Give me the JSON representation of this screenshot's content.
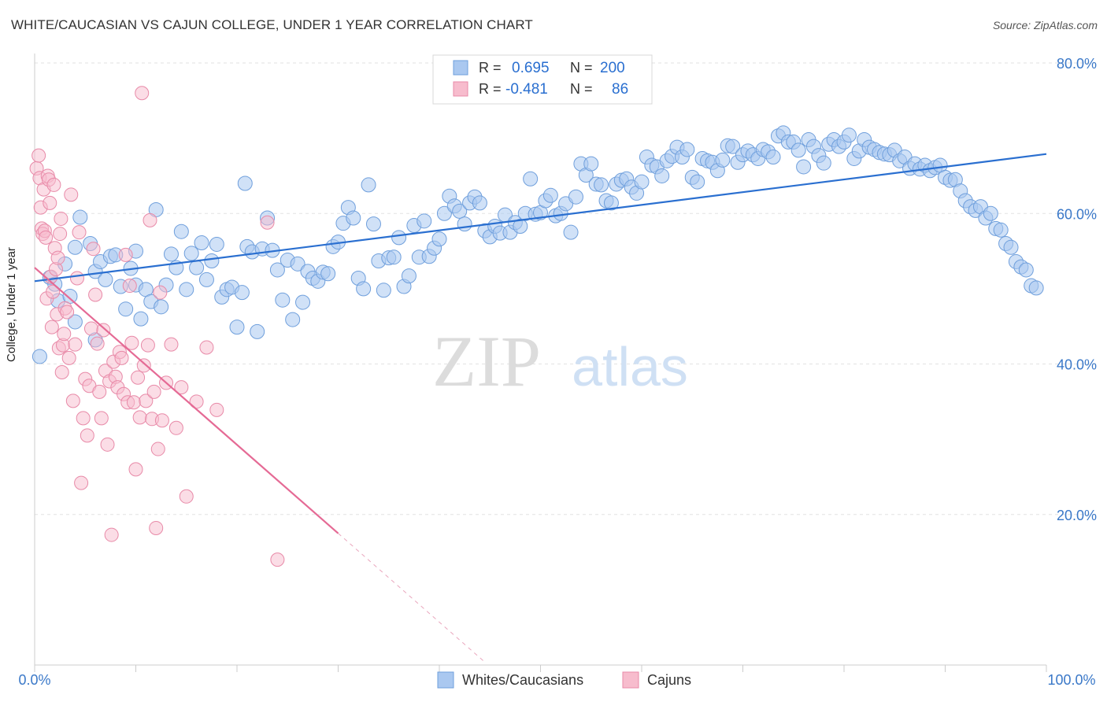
{
  "title": "WHITE/CAUCASIAN VS CAJUN COLLEGE, UNDER 1 YEAR CORRELATION CHART",
  "source": "Source: ZipAtlas.com",
  "watermark": {
    "zip": "ZIP",
    "atlas": "atlas"
  },
  "legend": {
    "rows": [
      {
        "r_label": "R =",
        "r_value": "0.695",
        "n_label": "N =",
        "n_value": "200",
        "color": "#aac8f0"
      },
      {
        "r_label": "R =",
        "r_value": "-0.481",
        "n_label": "N =",
        "n_value": "86",
        "color": "#f7bccd"
      }
    ]
  },
  "bottom_legend": [
    {
      "label": "Whites/Caucasians",
      "color": "#aac8f0"
    },
    {
      "label": "Cajuns",
      "color": "#f7bccd"
    }
  ],
  "chart_data": {
    "type": "scatter",
    "title": "WHITE/CAUCASIAN VS CAJUN COLLEGE, UNDER 1 YEAR CORRELATION CHART",
    "xlabel": "",
    "ylabel": "College, Under 1 year",
    "xlim": [
      0,
      100
    ],
    "ylim": [
      0,
      82
    ],
    "x_ticks": [
      "0.0%",
      "100.0%"
    ],
    "y_ticks": [
      "20.0%",
      "40.0%",
      "60.0%",
      "80.0%"
    ],
    "grid": true,
    "colors": {
      "blue": "#2a6fd0",
      "blue_fill": "#aac8f0",
      "pink": "#e56a95",
      "pink_fill": "#f7bccd",
      "tick_label": "#3a78c8"
    },
    "series": [
      {
        "name": "Whites/Caucasians",
        "color": "#2a6fd0",
        "trend": {
          "x": [
            0,
            100
          ],
          "y": [
            51.0,
            67.9
          ]
        },
        "points": [
          [
            0.5,
            41
          ],
          [
            1.5,
            51.5
          ],
          [
            2,
            50.6
          ],
          [
            2.3,
            48.4
          ],
          [
            3,
            53.3
          ],
          [
            3.5,
            49
          ],
          [
            4,
            55.5
          ],
          [
            4.5,
            59.5
          ],
          [
            5.5,
            56
          ],
          [
            6,
            52.3
          ],
          [
            6.5,
            53.6
          ],
          [
            7,
            51.2
          ],
          [
            7.5,
            54.3
          ],
          [
            8,
            54.5
          ],
          [
            8.5,
            50.3
          ],
          [
            9,
            47.3
          ],
          [
            9.5,
            52.7
          ],
          [
            10,
            50.5
          ],
          [
            10.5,
            46
          ],
          [
            11,
            49.9
          ],
          [
            11.5,
            48.3
          ],
          [
            12,
            60.5
          ],
          [
            12.5,
            47.6
          ],
          [
            13,
            50.5
          ],
          [
            13.5,
            54.6
          ],
          [
            14,
            52.8
          ],
          [
            14.5,
            57.6
          ],
          [
            15,
            49.9
          ],
          [
            15.5,
            54.7
          ],
          [
            16,
            52.8
          ],
          [
            16.5,
            56.1
          ],
          [
            17,
            51.2
          ],
          [
            17.5,
            53.7
          ],
          [
            18,
            55.9
          ],
          [
            18.5,
            48.9
          ],
          [
            19,
            49.9
          ],
          [
            19.5,
            50.2
          ],
          [
            20,
            44.9
          ],
          [
            20.5,
            49.5
          ],
          [
            21,
            55.6
          ],
          [
            21.5,
            54.9
          ],
          [
            22,
            44.3
          ],
          [
            22.5,
            55.3
          ],
          [
            23,
            59.4
          ],
          [
            23.5,
            55.1
          ],
          [
            24,
            52.5
          ],
          [
            24.5,
            48.5
          ],
          [
            25,
            53.8
          ],
          [
            25.5,
            45.9
          ],
          [
            26,
            53.3
          ],
          [
            26.5,
            48.2
          ],
          [
            27,
            52.3
          ],
          [
            27.5,
            51.4
          ],
          [
            28,
            51
          ],
          [
            28.5,
            52.2
          ],
          [
            29,
            52
          ],
          [
            29.5,
            55.6
          ],
          [
            30,
            56.2
          ],
          [
            30.5,
            58.7
          ],
          [
            31,
            60.8
          ],
          [
            31.5,
            59.4
          ],
          [
            32,
            51.4
          ],
          [
            32.5,
            50
          ],
          [
            33,
            63.8
          ],
          [
            33.5,
            58.6
          ],
          [
            34,
            53.7
          ],
          [
            34.5,
            49.8
          ],
          [
            35,
            54.1
          ],
          [
            35.5,
            54.2
          ],
          [
            36,
            56.8
          ],
          [
            36.5,
            50.3
          ],
          [
            37,
            51.7
          ],
          [
            37.5,
            58.4
          ],
          [
            38,
            54.2
          ],
          [
            38.5,
            59
          ],
          [
            39,
            54.3
          ],
          [
            39.5,
            55.4
          ],
          [
            40,
            56.6
          ],
          [
            40.5,
            60
          ],
          [
            41,
            62.3
          ],
          [
            41.5,
            61
          ],
          [
            42,
            60.3
          ],
          [
            42.5,
            58.6
          ],
          [
            43,
            61.4
          ],
          [
            43.5,
            62.2
          ],
          [
            44,
            61.4
          ],
          [
            44.5,
            57.7
          ],
          [
            45,
            56.9
          ],
          [
            45.5,
            58.3
          ],
          [
            46,
            57.4
          ],
          [
            46.5,
            59.8
          ],
          [
            47,
            57.5
          ],
          [
            47.5,
            58.8
          ],
          [
            48,
            58.3
          ],
          [
            48.5,
            60
          ],
          [
            49,
            64.6
          ],
          [
            49.5,
            59.9
          ],
          [
            50,
            60.1
          ],
          [
            50.5,
            61.7
          ],
          [
            51,
            62.4
          ],
          [
            51.5,
            59.7
          ],
          [
            52,
            60
          ],
          [
            52.5,
            61.3
          ],
          [
            53,
            57.5
          ],
          [
            53.5,
            62.2
          ],
          [
            54,
            66.6
          ],
          [
            54.5,
            65.1
          ],
          [
            55,
            66.6
          ],
          [
            55.5,
            63.9
          ],
          [
            56,
            63.8
          ],
          [
            56.5,
            61.7
          ],
          [
            57,
            61.4
          ],
          [
            57.5,
            63.9
          ],
          [
            58,
            64.4
          ],
          [
            58.5,
            64.6
          ],
          [
            59,
            63.5
          ],
          [
            59.5,
            62.7
          ],
          [
            60,
            64.2
          ],
          [
            60.5,
            67.5
          ],
          [
            61,
            66.4
          ],
          [
            61.5,
            66.2
          ],
          [
            62,
            65
          ],
          [
            62.5,
            67
          ],
          [
            63,
            67.6
          ],
          [
            63.5,
            68.8
          ],
          [
            64,
            67.5
          ],
          [
            64.5,
            68.5
          ],
          [
            65,
            64.8
          ],
          [
            65.5,
            64.2
          ],
          [
            66,
            67.3
          ],
          [
            66.5,
            67
          ],
          [
            67,
            66.8
          ],
          [
            67.5,
            65.7
          ],
          [
            68,
            67.1
          ],
          [
            68.5,
            69
          ],
          [
            69,
            68.9
          ],
          [
            69.5,
            66.8
          ],
          [
            70,
            67.8
          ],
          [
            70.5,
            68.3
          ],
          [
            71,
            67.8
          ],
          [
            71.5,
            67.3
          ],
          [
            72,
            68.5
          ],
          [
            72.5,
            68.2
          ],
          [
            73,
            67.5
          ],
          [
            73.5,
            70.3
          ],
          [
            74,
            70.7
          ],
          [
            74.5,
            69.5
          ],
          [
            75,
            69.5
          ],
          [
            75.5,
            68.4
          ],
          [
            76,
            66.2
          ],
          [
            76.5,
            69.8
          ],
          [
            77,
            68.9
          ],
          [
            77.5,
            67.7
          ],
          [
            78,
            66.7
          ],
          [
            78.5,
            69.2
          ],
          [
            79,
            69.8
          ],
          [
            79.5,
            68.9
          ],
          [
            80,
            69.5
          ],
          [
            80.5,
            70.4
          ],
          [
            81,
            67.3
          ],
          [
            81.5,
            68.3
          ],
          [
            82,
            69.8
          ],
          [
            82.5,
            68.8
          ],
          [
            83,
            68.5
          ],
          [
            83.5,
            68.1
          ],
          [
            84,
            67.9
          ],
          [
            84.5,
            67.8
          ],
          [
            85,
            68.4
          ],
          [
            85.5,
            67
          ],
          [
            86,
            67.5
          ],
          [
            86.5,
            66
          ],
          [
            87,
            66.6
          ],
          [
            87.5,
            65.9
          ],
          [
            88,
            66.4
          ],
          [
            88.5,
            65.7
          ],
          [
            89,
            66.1
          ],
          [
            89.5,
            66.4
          ],
          [
            90,
            64.8
          ],
          [
            90.5,
            64.4
          ],
          [
            91,
            64.5
          ],
          [
            91.5,
            63
          ],
          [
            92,
            61.7
          ],
          [
            92.5,
            60.9
          ],
          [
            93,
            60.4
          ],
          [
            93.5,
            60.9
          ],
          [
            94,
            59.4
          ],
          [
            94.5,
            60
          ],
          [
            95,
            58
          ],
          [
            95.5,
            57.8
          ],
          [
            96,
            56
          ],
          [
            96.5,
            55.5
          ],
          [
            97,
            53.6
          ],
          [
            97.5,
            52.9
          ],
          [
            98,
            52.5
          ],
          [
            98.5,
            50.4
          ],
          [
            99,
            50.1
          ],
          [
            4,
            45.6
          ],
          [
            6,
            43.2
          ],
          [
            10,
            55
          ],
          [
            20.8,
            64
          ]
        ]
      },
      {
        "name": "Cajuns",
        "color": "#e56a95",
        "trend": {
          "x": [
            0,
            30
          ],
          "y": [
            52.8,
            17.5
          ]
        },
        "trend_ext": {
          "x": [
            30,
            44.4
          ],
          "y": [
            17.5,
            0.5
          ]
        },
        "points": [
          [
            0.2,
            66
          ],
          [
            0.4,
            67.7
          ],
          [
            0.5,
            64.7
          ],
          [
            0.6,
            60.8
          ],
          [
            0.7,
            58
          ],
          [
            0.8,
            57.3
          ],
          [
            0.9,
            63.2
          ],
          [
            1,
            57.7
          ],
          [
            1.1,
            56.8
          ],
          [
            1.2,
            48.7
          ],
          [
            1.3,
            65
          ],
          [
            1.4,
            64.5
          ],
          [
            1.5,
            61.4
          ],
          [
            1.6,
            51.6
          ],
          [
            1.7,
            44.9
          ],
          [
            1.8,
            49.6
          ],
          [
            1.9,
            63.8
          ],
          [
            2,
            55.4
          ],
          [
            2.1,
            52.6
          ],
          [
            2.2,
            46.6
          ],
          [
            2.3,
            54.1
          ],
          [
            2.4,
            42.1
          ],
          [
            2.5,
            57.3
          ],
          [
            2.6,
            59.3
          ],
          [
            2.7,
            38.9
          ],
          [
            2.8,
            42.5
          ],
          [
            2.9,
            44
          ],
          [
            3,
            47.4
          ],
          [
            3.2,
            46.9
          ],
          [
            3.4,
            40.8
          ],
          [
            3.6,
            62.5
          ],
          [
            3.8,
            35.1
          ],
          [
            4,
            42.6
          ],
          [
            4.2,
            51.4
          ],
          [
            4.4,
            57.5
          ],
          [
            4.6,
            24.2
          ],
          [
            4.8,
            32.8
          ],
          [
            5,
            38
          ],
          [
            5.2,
            30.5
          ],
          [
            5.4,
            37.1
          ],
          [
            5.6,
            44.7
          ],
          [
            5.8,
            55.3
          ],
          [
            6,
            49.2
          ],
          [
            6.2,
            42.7
          ],
          [
            6.4,
            36.3
          ],
          [
            6.6,
            32.8
          ],
          [
            6.8,
            44.5
          ],
          [
            7,
            39.1
          ],
          [
            7.2,
            29.3
          ],
          [
            7.4,
            37.7
          ],
          [
            7.6,
            17.3
          ],
          [
            7.8,
            40.3
          ],
          [
            8,
            38.3
          ],
          [
            8.2,
            36.9
          ],
          [
            8.4,
            41.6
          ],
          [
            8.6,
            40.8
          ],
          [
            8.8,
            36
          ],
          [
            9,
            54.5
          ],
          [
            9.2,
            34.9
          ],
          [
            9.4,
            50.4
          ],
          [
            9.6,
            42.8
          ],
          [
            9.8,
            34.9
          ],
          [
            10,
            26
          ],
          [
            10.2,
            38.2
          ],
          [
            10.4,
            32.9
          ],
          [
            10.6,
            76
          ],
          [
            10.8,
            39.8
          ],
          [
            11,
            35.1
          ],
          [
            11.2,
            42.5
          ],
          [
            11.4,
            59.1
          ],
          [
            11.6,
            32.7
          ],
          [
            11.8,
            36.3
          ],
          [
            12,
            18.2
          ],
          [
            12.2,
            28.7
          ],
          [
            12.4,
            49.5
          ],
          [
            12.6,
            32.5
          ],
          [
            13,
            37.5
          ],
          [
            13.5,
            42.6
          ],
          [
            14,
            31.5
          ],
          [
            14.5,
            36.9
          ],
          [
            15,
            22.4
          ],
          [
            16,
            35
          ],
          [
            17,
            42.2
          ],
          [
            18,
            33.9
          ],
          [
            23,
            58.8
          ],
          [
            24,
            14
          ]
        ]
      }
    ]
  }
}
